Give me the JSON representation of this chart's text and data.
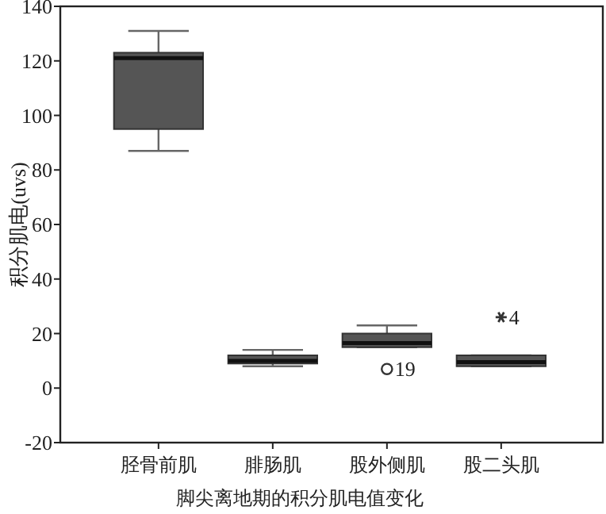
{
  "chart_data": {
    "type": "box",
    "xlabel": "脚尖离地期的积分肌电值变化",
    "ylabel": "积分肌电(uvs)",
    "categories": [
      "胫骨前肌",
      "腓肠肌",
      "股外侧肌",
      "股二头肌"
    ],
    "boxes": [
      {
        "low": 87,
        "q1": 95,
        "median": 121,
        "q3": 123,
        "high": 131
      },
      {
        "low": 8,
        "q1": 9,
        "median": 10,
        "q3": 12,
        "high": 14
      },
      {
        "low": 15,
        "q1": 15,
        "median": 16.5,
        "q3": 20,
        "high": 23,
        "outliers": [
          7
        ]
      },
      {
        "low": 8,
        "q1": 8,
        "median": 9.5,
        "q3": 12,
        "high": 12,
        "outliers": [
          26
        ]
      }
    ],
    "color": "#555555",
    "ylim": [
      -20,
      140
    ],
    "yticks": [
      -20,
      0,
      20,
      40,
      60,
      80,
      100,
      120,
      140
    ],
    "grid": false,
    "annotations": [
      "19",
      "4"
    ]
  }
}
